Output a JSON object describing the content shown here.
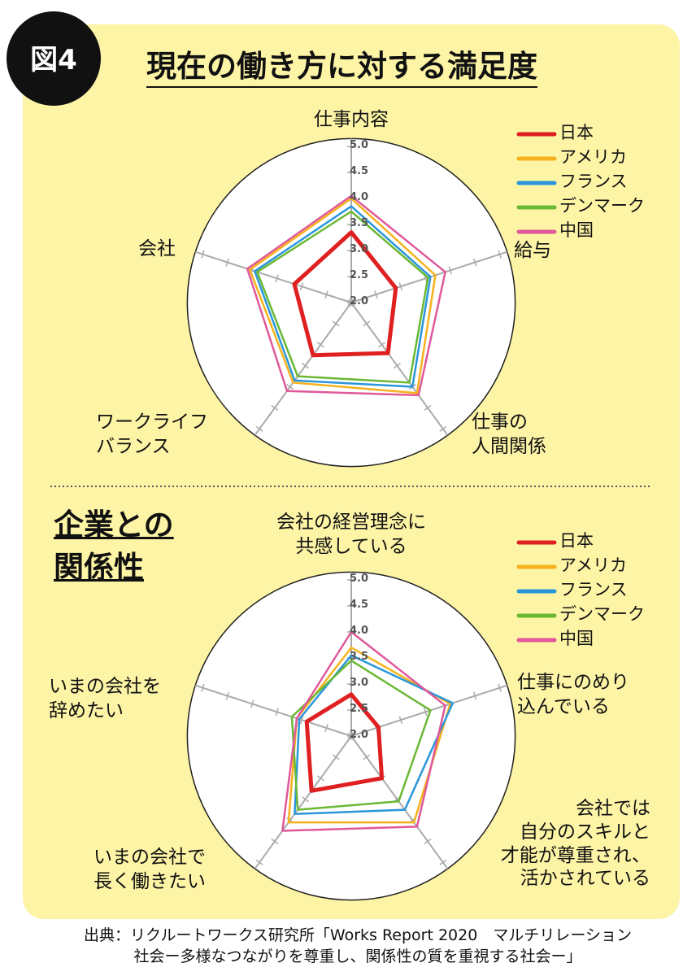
{
  "figure_label": "図4",
  "source": "出典：リクルートワークス研究所「Works Report 2020　マルチリレーション\n社会ー多様なつながりを尊重し、関係性の質を重視する社会ー」",
  "chart_data": [
    {
      "type": "radar",
      "title": "現在の働き方に対する満足度",
      "categories": [
        "仕事内容",
        "給与",
        "仕事の\n人間関係",
        "ワークライフ\nバランス",
        "会社"
      ],
      "rlim": [
        2,
        5
      ],
      "rticks": [
        {
          "value": 2,
          "label": "2.0"
        },
        2.5,
        {
          "value": 3,
          "label": "3.0"
        },
        3.5,
        {
          "value": 4,
          "label": "4.0"
        },
        4.5,
        {
          "value": 5,
          "label": "5.0"
        }
      ],
      "series": [
        {
          "name": "日本",
          "color": "#e02020",
          "values": [
            3.35,
            2.9,
            3.2,
            3.25,
            3.15
          ]
        },
        {
          "name": "アメリカ",
          "color": "#f5b21c",
          "values": [
            4.0,
            3.7,
            4.15,
            3.9,
            4.05
          ]
        },
        {
          "name": "フランス",
          "color": "#2a96d9",
          "values": [
            3.85,
            3.6,
            4.0,
            3.85,
            3.95
          ]
        },
        {
          "name": "デンマーク",
          "color": "#6ab833",
          "values": [
            3.75,
            3.55,
            3.9,
            3.75,
            3.9
          ]
        },
        {
          "name": "中国",
          "color": "#e0589a",
          "values": [
            4.05,
            3.9,
            4.2,
            4.1,
            4.1
          ]
        }
      ]
    },
    {
      "type": "radar",
      "title": "企業との\n関係性",
      "categories": [
        "会社の経営理念に\n共感している",
        "仕事にのめり\n込んでいる",
        "会社では\n自分のスキルと\n才能が尊重され、\n活かされている",
        "いまの会社で\n長く働きたい",
        "いまの会社を\n辞めたい"
      ],
      "rlim": [
        2,
        5
      ],
      "rticks": [
        {
          "value": 2,
          "label": "2.0"
        },
        2.5,
        {
          "value": 3,
          "label": "3.0"
        },
        3.5,
        {
          "value": 4,
          "label": "4.0"
        },
        4.5,
        {
          "value": 5,
          "label": "5.0"
        }
      ],
      "series": [
        {
          "name": "日本",
          "color": "#e02020",
          "values": [
            2.8,
            2.55,
            3.0,
            3.3,
            2.9
          ]
        },
        {
          "name": "アメリカ",
          "color": "#f5b21c",
          "values": [
            3.7,
            4.0,
            4.05,
            4.05,
            3.1
          ]
        },
        {
          "name": "フランス",
          "color": "#2a96d9",
          "values": [
            3.55,
            4.05,
            3.75,
            3.85,
            3.05
          ]
        },
        {
          "name": "デンマーク",
          "color": "#6ab833",
          "values": [
            3.45,
            3.6,
            3.55,
            3.75,
            3.2
          ]
        },
        {
          "name": "中国",
          "color": "#e0589a",
          "values": [
            4.0,
            3.9,
            4.15,
            4.25,
            3.1
          ]
        }
      ]
    }
  ]
}
